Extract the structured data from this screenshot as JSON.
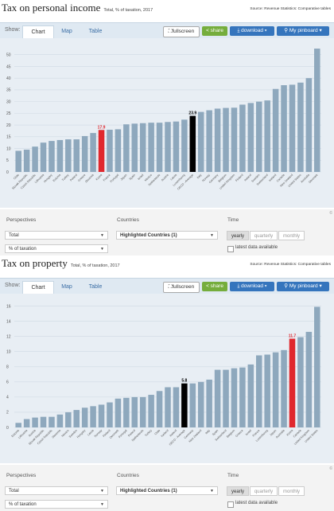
{
  "panels": [
    {
      "title": "Tax on personal income",
      "subtitle": "Total, % of taxation, 2017",
      "source": "Source: Revenue Statistics: Comparative tables",
      "tabs": {
        "show_label": "Show:",
        "chart": "Chart",
        "map": "Map",
        "table": "Table"
      },
      "buttons": {
        "fullscreen": "fullscreen",
        "share": "share",
        "download": "download",
        "pinboard": "My pinboard"
      },
      "controls": {
        "perspectives_label": "Perspectives",
        "perspective_value": "Total",
        "perspective2_value": "% of taxation",
        "countries_label": "Countries",
        "countries_value": "Highlighted Countries (1)",
        "time_label": "Time",
        "time_options": [
          "yearly",
          "quarterly",
          "monthly"
        ],
        "latest_label": "latest data available",
        "corner": "©"
      }
    },
    {
      "title": "Tax on property",
      "subtitle": "Total, % of taxation, 2017",
      "source": "Source: Revenue Statistics: Comparative tables",
      "tabs": {
        "show_label": "Show:",
        "chart": "Chart",
        "map": "Map",
        "table": "Table"
      },
      "buttons": {
        "fullscreen": "fullscreen",
        "share": "share",
        "download": "download",
        "pinboard": "My pinboard"
      },
      "controls": {
        "perspectives_label": "Perspectives",
        "perspective_value": "Total",
        "perspective2_value": "% of taxation",
        "countries_label": "Countries",
        "countries_value": "Highlighted Countries (1)",
        "time_label": "Time",
        "time_options": [
          "yearly",
          "quarterly",
          "monthly"
        ],
        "latest_label": "latest data available",
        "corner": "©"
      }
    }
  ],
  "chart_data": [
    {
      "type": "bar",
      "title": "Tax on personal income",
      "subtitle": "Total, % of taxation, 2017",
      "ylim": [
        0,
        55
      ],
      "yticks": [
        0,
        5,
        10,
        15,
        20,
        25,
        30,
        35,
        40,
        45,
        50
      ],
      "grid": true,
      "categories": [
        "Chile",
        "Slovak Republic",
        "Czech Republic",
        "Lithuania",
        "Hungary",
        "Estonia",
        "Turkey",
        "Poland",
        "Greece",
        "Slovenia",
        "Korea",
        "France",
        "Portugal",
        "Japan",
        "Spain",
        "Israel",
        "Mexico",
        "Netherlands",
        "Austria",
        "Latvia",
        "Luxembourg",
        "OECD - Average",
        "Italy",
        "Norway",
        "Germany",
        "Belgium",
        "United Kingdom",
        "Finland",
        "Ireland",
        "Sweden",
        "Switzerland",
        "Iceland",
        "Canada",
        "New Zealand",
        "United States",
        "Australia",
        "Denmark"
      ],
      "values": [
        9.0,
        9.5,
        10.8,
        12.5,
        13.2,
        13.6,
        13.9,
        13.9,
        15.3,
        16.6,
        17.9,
        18.0,
        18.2,
        20.3,
        20.6,
        20.8,
        21.0,
        21.0,
        21.3,
        21.5,
        22.3,
        23.9,
        25.6,
        26.3,
        27.0,
        27.3,
        27.4,
        28.7,
        29.4,
        30.0,
        30.5,
        35.4,
        37.0,
        37.2,
        38.1,
        40.0,
        52.6
      ],
      "highlight_red": "Korea",
      "highlight_black": "OECD - Average",
      "labels": {
        "Korea": "17.9",
        "OECD - Average": "23.9"
      },
      "colors": {
        "bar": "#8ea8bd",
        "red": "#e0282e",
        "black": "#000000",
        "red_label": "#e0282e",
        "black_label": "#000000"
      }
    },
    {
      "type": "bar",
      "title": "Tax on property",
      "subtitle": "Total, % of taxation, 2017",
      "ylim": [
        0,
        17
      ],
      "yticks": [
        0,
        2,
        4,
        6,
        8,
        10,
        12,
        14,
        16
      ],
      "grid": true,
      "categories": [
        "Estonia",
        "Lithuania",
        "Austria",
        "Slovak Republic",
        "Czech Republic",
        "Slovenia",
        "Mexico",
        "Sweden",
        "Hungary",
        "Latvia",
        "Norway",
        "Finland",
        "Denmark",
        "Portugal",
        "Poland",
        "Netherlands",
        "Turkey",
        "Chile",
        "Iceland",
        "Ireland",
        "OECD - Average",
        "Germany",
        "New Zealand",
        "Italy",
        "Spain",
        "Switzerland",
        "Belgium",
        "Greece",
        "Israel",
        "France",
        "Luxembourg",
        "Japan",
        "Australia",
        "Korea",
        "Canada",
        "United Kingdom",
        "United States"
      ],
      "values": [
        0.6,
        1.1,
        1.3,
        1.4,
        1.4,
        1.7,
        2.0,
        2.3,
        2.6,
        2.8,
        3.0,
        3.3,
        3.8,
        3.9,
        4.0,
        4.0,
        4.3,
        4.8,
        5.3,
        5.3,
        5.8,
        5.8,
        6.0,
        6.3,
        7.6,
        7.6,
        7.8,
        7.9,
        8.3,
        9.5,
        9.6,
        9.9,
        10.2,
        11.7,
        11.9,
        12.6,
        15.9
      ],
      "highlight_red": "Korea",
      "highlight_black": "OECD - Average",
      "labels": {
        "Korea": "11.7",
        "OECD - Average": "5.8"
      },
      "colors": {
        "bar": "#8ea8bd",
        "red": "#e0282e",
        "black": "#000000",
        "red_label": "#e0282e",
        "black_label": "#000000"
      }
    }
  ]
}
